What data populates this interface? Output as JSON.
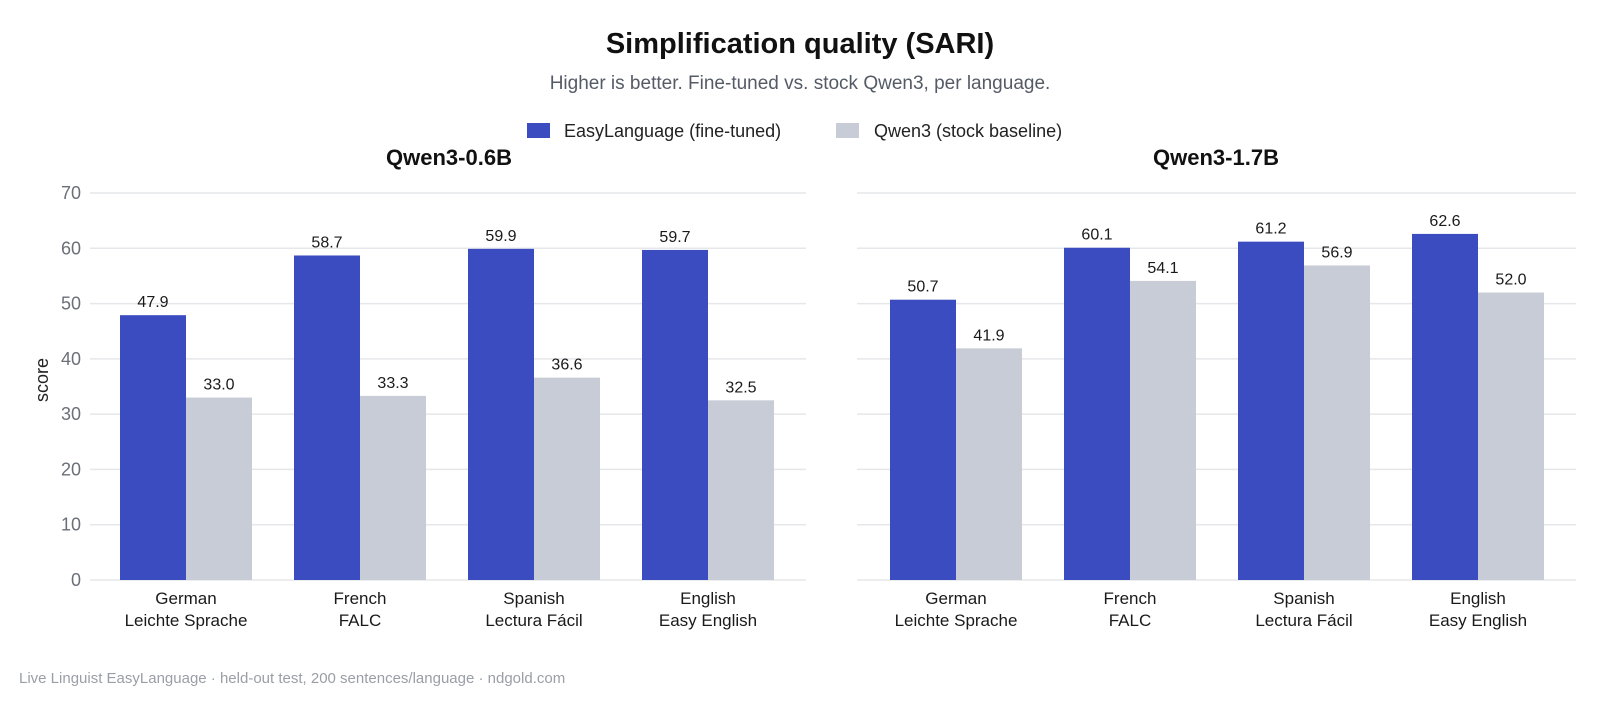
{
  "chart_data": {
    "type": "bar",
    "title": "Simplification quality (SARI)",
    "subtitle": "Higher is better. Fine-tuned vs. stock Qwen3, per language.",
    "ylabel": "score",
    "ylim": [
      0,
      70
    ],
    "yticks": [
      0,
      10,
      20,
      30,
      40,
      50,
      60,
      70
    ],
    "grid": true,
    "legend_position": "top-center",
    "categories": [
      [
        "German",
        "Leichte Sprache"
      ],
      [
        "French",
        "FALC"
      ],
      [
        "Spanish",
        "Lectura Fácil"
      ],
      [
        "English",
        "Easy English"
      ]
    ],
    "legend": [
      {
        "name": "EasyLanguage (fine-tuned)",
        "color": "#3b4cc0"
      },
      {
        "name": "Qwen3 (stock baseline)",
        "color": "#c8ccd6"
      }
    ],
    "panels": [
      {
        "title": "Qwen3-0.6B",
        "series": [
          {
            "name": "EasyLanguage (fine-tuned)",
            "values": [
              47.9,
              58.7,
              59.9,
              59.7
            ]
          },
          {
            "name": "Qwen3 (stock baseline)",
            "values": [
              33.0,
              33.3,
              36.6,
              32.5
            ]
          }
        ]
      },
      {
        "title": "Qwen3-1.7B",
        "series": [
          {
            "name": "EasyLanguage (fine-tuned)",
            "values": [
              50.7,
              60.1,
              61.2,
              62.6
            ]
          },
          {
            "name": "Qwen3 (stock baseline)",
            "values": [
              41.9,
              54.1,
              56.9,
              52.0
            ]
          }
        ]
      }
    ],
    "footer": "Live Linguist EasyLanguage · held-out test, 200 sentences/language · ndgold.com"
  }
}
